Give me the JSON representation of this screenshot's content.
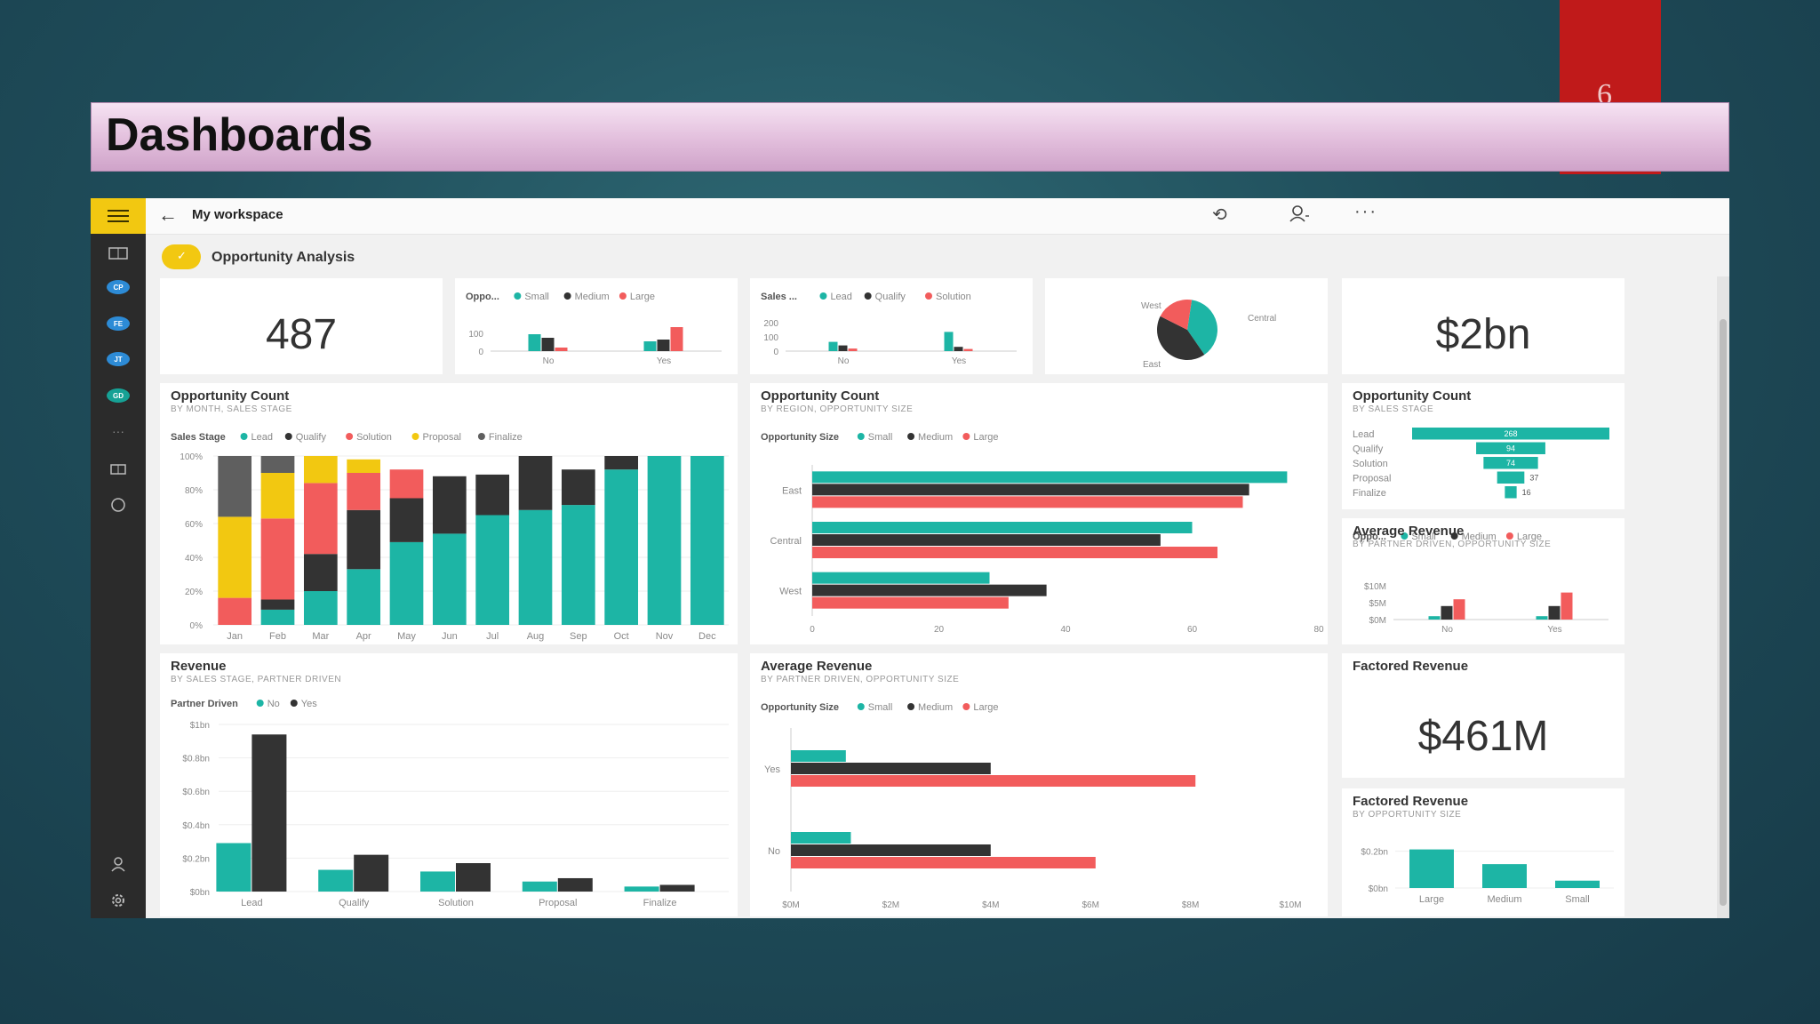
{
  "slide": {
    "title": "Dashboards",
    "corner_glyph": "6"
  },
  "topbar": {
    "title": "My workspace",
    "icons": [
      "back-arrow-icon",
      "refresh-icon",
      "user-icon",
      "more-icon"
    ]
  },
  "rail": {
    "badges": [
      "CP",
      "FE",
      "JT",
      "GD"
    ],
    "colors": {
      "rail": "#2b2b2b",
      "accent": "#f2c811",
      "badge": "#2d8bd6",
      "badge_green": "#16a195"
    }
  },
  "dashboard": {
    "name": "Opportunity Analysis"
  },
  "colors": {
    "teal": "#1db5a5",
    "dark": "#333333",
    "red": "#f25c5c",
    "yellow": "#f2c811",
    "gray": "#5f5f5f"
  },
  "tiles": {
    "count_card": {
      "value": "487"
    },
    "revenue_card": {
      "value": "$2bn"
    },
    "factored_card": {
      "title": "Factored Revenue",
      "value": "$461M"
    },
    "mini_size": {
      "legend_title": "Oppo...",
      "legend": [
        "Small",
        "Medium",
        "Large"
      ],
      "y_ticks": [
        "100",
        "0"
      ],
      "chart_data": {
        "type": "bar",
        "categories": [
          "No",
          "Yes"
        ],
        "ylim": [
          0,
          200
        ],
        "series": [
          {
            "name": "Small",
            "values": [
              95,
              55
            ]
          },
          {
            "name": "Medium",
            "values": [
              75,
              65
            ]
          },
          {
            "name": "Large",
            "values": [
              20,
              135
            ]
          }
        ]
      }
    },
    "mini_stage": {
      "legend_title": "Sales ...",
      "legend": [
        "Lead",
        "Qualify",
        "Solution"
      ],
      "y_ticks": [
        "200",
        "100",
        "0"
      ],
      "chart_data": {
        "type": "bar",
        "categories": [
          "No",
          "Yes"
        ],
        "ylim": [
          0,
          250
        ],
        "series": [
          {
            "name": "Lead",
            "values": [
              65,
              135
            ]
          },
          {
            "name": "Qualify",
            "values": [
              40,
              30
            ]
          },
          {
            "name": "Solution",
            "values": [
              18,
              15
            ]
          }
        ]
      }
    },
    "mini_pie": {
      "labels": [
        "West",
        "Central",
        "East"
      ],
      "chart_data": {
        "type": "pie",
        "categories": [
          "Central",
          "East",
          "West"
        ],
        "values": [
          0.38,
          0.42,
          0.2
        ]
      }
    },
    "stacked_month": {
      "title": "Opportunity Count",
      "subtitle": "BY MONTH, SALES STAGE",
      "legend_title": "Sales Stage",
      "legend": [
        "Lead",
        "Qualify",
        "Solution",
        "Proposal",
        "Finalize"
      ],
      "y_ticks": [
        "100%",
        "80%",
        "60%",
        "40%",
        "20%",
        "0%"
      ],
      "chart_data": {
        "type": "bar",
        "stacked": true,
        "ylim": [
          0,
          100
        ],
        "categories": [
          "Jan",
          "Feb",
          "Mar",
          "Apr",
          "May",
          "Jun",
          "Jul",
          "Aug",
          "Sep",
          "Oct",
          "Nov",
          "Dec"
        ],
        "series": [
          {
            "name": "Lead",
            "values": [
              0,
              9,
              20,
              33,
              49,
              54,
              65,
              68,
              71,
              92,
              100,
              100
            ]
          },
          {
            "name": "Qualify",
            "values": [
              0,
              6,
              22,
              35,
              26,
              34,
              24,
              32,
              21,
              8,
              0,
              0
            ]
          },
          {
            "name": "Solution",
            "values": [
              16,
              48,
              42,
              22,
              17,
              0,
              0,
              0,
              0,
              0,
              0,
              0
            ]
          },
          {
            "name": "Proposal",
            "values": [
              48,
              27,
              16,
              8,
              0,
              0,
              0,
              0,
              0,
              0,
              0,
              0
            ]
          },
          {
            "name": "Finalize",
            "values": [
              36,
              10,
              0,
              0,
              0,
              0,
              0,
              0,
              0,
              0,
              0,
              0
            ]
          }
        ]
      }
    },
    "region_bar": {
      "title": "Opportunity Count",
      "subtitle": "BY REGION, OPPORTUNITY SIZE",
      "legend_title": "Opportunity Size",
      "legend": [
        "Small",
        "Medium",
        "Large"
      ],
      "x_ticks": [
        "0",
        "20",
        "40",
        "60",
        "80"
      ],
      "chart_data": {
        "type": "bar",
        "orientation": "horizontal",
        "xlim": [
          0,
          80
        ],
        "categories": [
          "East",
          "Central",
          "West"
        ],
        "series": [
          {
            "name": "Small",
            "values": [
              75,
              60,
              28
            ]
          },
          {
            "name": "Medium",
            "values": [
              69,
              55,
              37
            ]
          },
          {
            "name": "Large",
            "values": [
              68,
              64,
              31
            ]
          }
        ]
      }
    },
    "stage_funnel": {
      "title": "Opportunity Count",
      "subtitle": "BY SALES STAGE",
      "chart_data": {
        "type": "bar",
        "orientation": "horizontal",
        "categories": [
          "Lead",
          "Qualify",
          "Solution",
          "Proposal",
          "Finalize"
        ],
        "values": [
          268,
          94,
          74,
          37,
          16
        ]
      }
    },
    "avg_rev_small": {
      "title": "Average Revenue",
      "subtitle": "BY PARTNER DRIVEN, OPPORTUNITY SIZE",
      "legend_title": "Oppo...",
      "legend": [
        "Small",
        "Medium",
        "Large"
      ],
      "y_ticks": [
        "$10M",
        "$5M",
        "$0M"
      ],
      "chart_data": {
        "type": "bar",
        "categories": [
          "No",
          "Yes"
        ],
        "ylim": [
          0,
          10
        ],
        "series": [
          {
            "name": "Small",
            "values": [
              1,
              1
            ]
          },
          {
            "name": "Medium",
            "values": [
              4,
              4
            ]
          },
          {
            "name": "Large",
            "values": [
              6,
              8
            ]
          }
        ]
      }
    },
    "revenue_stage": {
      "title": "Revenue",
      "subtitle": "BY SALES STAGE, PARTNER DRIVEN",
      "legend_title": "Partner Driven",
      "legend": [
        "No",
        "Yes"
      ],
      "y_ticks": [
        "$1bn",
        "$0.8bn",
        "$0.6bn",
        "$0.4bn",
        "$0.2bn",
        "$0bn"
      ],
      "chart_data": {
        "type": "bar",
        "ylim": [
          0,
          1.0
        ],
        "categories": [
          "Lead",
          "Qualify",
          "Solution",
          "Proposal",
          "Finalize"
        ],
        "series": [
          {
            "name": "No",
            "values": [
              0.29,
              0.13,
              0.12,
              0.06,
              0.03
            ]
          },
          {
            "name": "Yes",
            "values": [
              0.94,
              0.22,
              0.17,
              0.08,
              0.04
            ]
          }
        ]
      }
    },
    "avg_rev_big": {
      "title": "Average Revenue",
      "subtitle": "BY PARTNER DRIVEN, OPPORTUNITY SIZE",
      "legend_title": "Opportunity Size",
      "legend": [
        "Small",
        "Medium",
        "Large"
      ],
      "x_ticks": [
        "$0M",
        "$2M",
        "$4M",
        "$6M",
        "$8M",
        "$10M"
      ],
      "chart_data": {
        "type": "bar",
        "orientation": "horizontal",
        "xlim": [
          0,
          10
        ],
        "categories": [
          "Yes",
          "No"
        ],
        "series": [
          {
            "name": "Small",
            "values": [
              1.1,
              1.2
            ]
          },
          {
            "name": "Medium",
            "values": [
              4.0,
              4.0
            ]
          },
          {
            "name": "Large",
            "values": [
              8.1,
              6.1
            ]
          }
        ]
      }
    },
    "factored_size": {
      "title": "Factored Revenue",
      "subtitle": "BY OPPORTUNITY SIZE",
      "y_ticks": [
        "$0.2bn",
        "$0bn"
      ],
      "chart_data": {
        "type": "bar",
        "ylim": [
          0,
          0.3
        ],
        "categories": [
          "Large",
          "Medium",
          "Small"
        ],
        "values": [
          0.21,
          0.13,
          0.04
        ]
      }
    }
  }
}
